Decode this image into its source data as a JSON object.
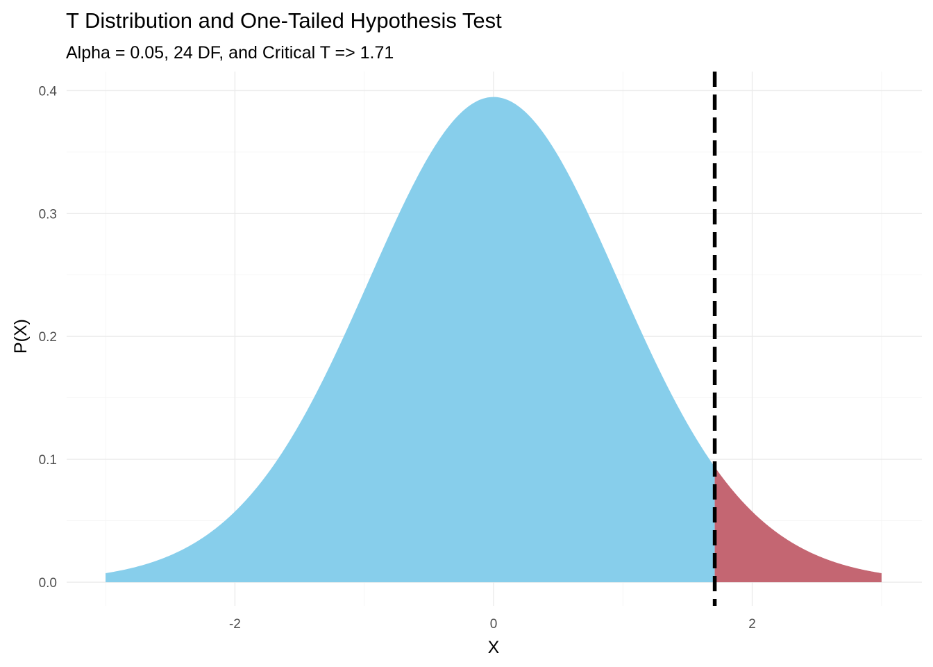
{
  "chart_data": {
    "type": "area",
    "title": "T Distribution and One-Tailed Hypothesis Test",
    "subtitle": "Alpha = 0.05, 24 DF, and Critical T => 1.71",
    "xlabel": "X",
    "ylabel": "P(X)",
    "xlim": [
      -3,
      3
    ],
    "ylim": [
      0,
      0.4
    ],
    "x_ticks": [
      -2,
      0,
      2
    ],
    "x_tick_labels": [
      "-2",
      "0",
      "2"
    ],
    "y_ticks": [
      0.0,
      0.1,
      0.2,
      0.3,
      0.4
    ],
    "y_tick_labels": [
      "0.0",
      "0.1",
      "0.2",
      "0.3",
      "0.4"
    ],
    "degrees_of_freedom": 24,
    "alpha": 0.05,
    "critical_t": 1.71,
    "grid": true,
    "series": [
      {
        "region": "acceptance",
        "color": "#87ceeb",
        "x": [
          -3,
          -2.5,
          -2,
          -1.5,
          -1,
          -0.5,
          0,
          0.5,
          1,
          1.5,
          1.71
        ],
        "y": [
          0.007,
          0.02,
          0.054,
          0.127,
          0.236,
          0.346,
          0.394,
          0.346,
          0.236,
          0.127,
          0.092
        ]
      },
      {
        "region": "rejection",
        "color": "#c46672",
        "x": [
          1.71,
          2,
          2.5,
          3
        ],
        "y": [
          0.092,
          0.054,
          0.02,
          0.007
        ]
      }
    ],
    "critical_line": {
      "x": 1.71,
      "color": "#000000",
      "style": "dashed"
    }
  }
}
